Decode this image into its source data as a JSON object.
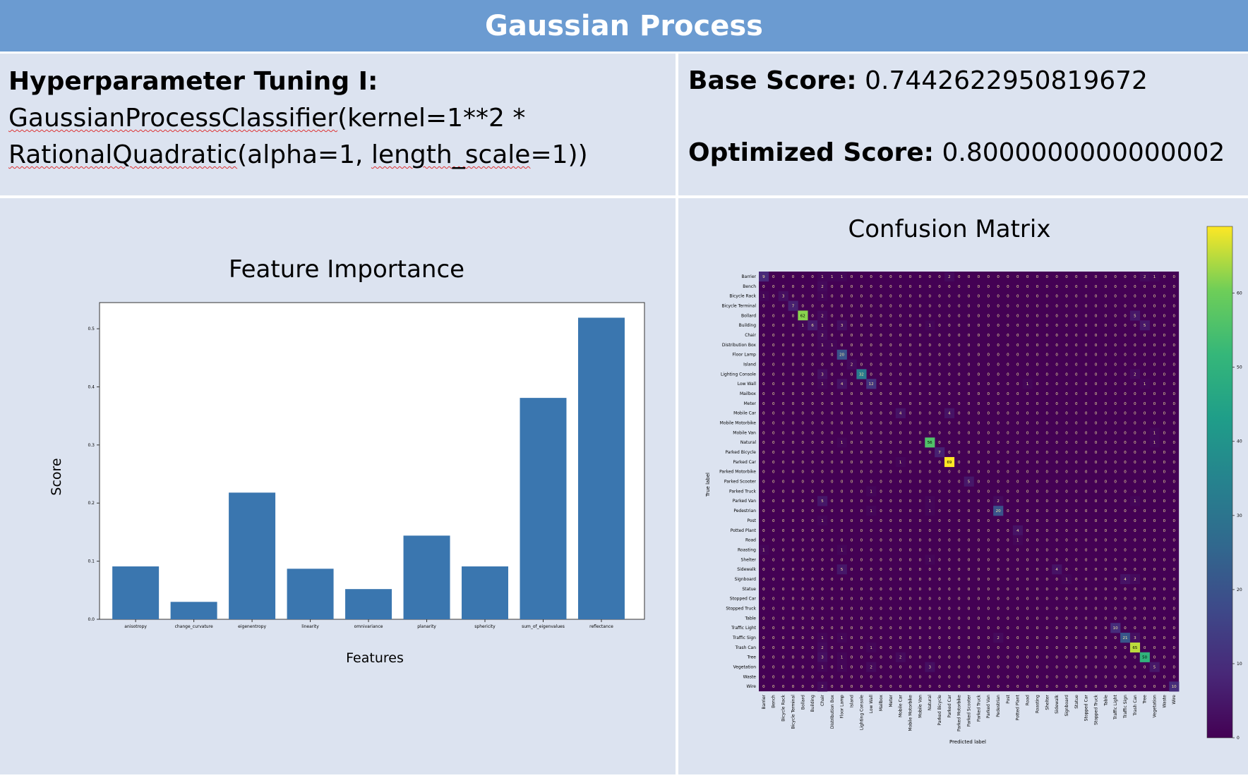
{
  "slide_title": "Gaussian Process",
  "tuning": {
    "heading": "Hyperparameter Tuning I:",
    "line1_a": "GaussianProcessClassifier",
    "line1_b": "(kernel=1**2 *",
    "line2_a": "RationalQuadratic",
    "line2_b": "(alpha=1, ",
    "line2_c": "length_scale",
    "line2_d": "=1))"
  },
  "scores": {
    "base_label": "Base Score:",
    "base_value": "0.7442622950819672",
    "optimized_label": "Optimized Score:",
    "optimized_value": "0.8000000000000002"
  },
  "chart_data": [
    {
      "type": "bar",
      "title": "Feature Importance",
      "xlabel": "Features",
      "ylabel": "Score",
      "categories": [
        "anisotropy",
        "change_curvature",
        "eigenentropy",
        "linearity",
        "omnivariance",
        "planarity",
        "sphericity",
        "sum_of_eigenvalues",
        "reflectance"
      ],
      "values": [
        0.091,
        0.03,
        0.218,
        0.087,
        0.052,
        0.144,
        0.091,
        0.381,
        0.519
      ],
      "ylim": [
        0,
        0.545
      ],
      "yticks": [
        "0.0",
        "0.1",
        "0.2",
        "0.3",
        "0.4",
        "0.5"
      ],
      "color": "#3a76af"
    },
    {
      "type": "heatmap",
      "title": "Confusion Matrix",
      "xlabel": "Predicted label",
      "ylabel": "True label",
      "labels": [
        "Barrier",
        "Bench",
        "Bicycle Rack",
        "Bicycle Terminal",
        "Bollard",
        "Building",
        "Chair",
        "Distribution Box",
        "Floor Lamp",
        "Island",
        "Lighting Console",
        "Low Wall",
        "Mailbox",
        "Meter",
        "Mobile Car",
        "Mobile Motorbike",
        "Mobile Van",
        "Natural",
        "Parked Bicycle",
        "Parked Car",
        "Parked Motorbike",
        "Parked Scooter",
        "Parked Truck",
        "Parked Van",
        "Pedestrian",
        "Post",
        "Potted Plant",
        "Road",
        "Roasting",
        "Shelter",
        "Sidewalk",
        "Signboard",
        "Statue",
        "Stopped Car",
        "Stopped Truck",
        "Table",
        "Traffic Light",
        "Traffic Sign",
        "Trash Can",
        "Tree",
        "Vegetation",
        "Waste",
        "Wire"
      ],
      "nonzero": [
        [
          0,
          0,
          9
        ],
        [
          0,
          6,
          1
        ],
        [
          0,
          7,
          1
        ],
        [
          0,
          8,
          1
        ],
        [
          0,
          19,
          2
        ],
        [
          0,
          39,
          2
        ],
        [
          0,
          40,
          1
        ],
        [
          1,
          6,
          2
        ],
        [
          2,
          0,
          1
        ],
        [
          2,
          2,
          3
        ],
        [
          2,
          6,
          1
        ],
        [
          3,
          3,
          7
        ],
        [
          4,
          4,
          62
        ],
        [
          4,
          6,
          2
        ],
        [
          4,
          38,
          5
        ],
        [
          5,
          4,
          1
        ],
        [
          5,
          5,
          6
        ],
        [
          5,
          6,
          1
        ],
        [
          5,
          8,
          3
        ],
        [
          5,
          17,
          1
        ],
        [
          5,
          39,
          5
        ],
        [
          6,
          6,
          2
        ],
        [
          7,
          6,
          1
        ],
        [
          7,
          7,
          1
        ],
        [
          8,
          8,
          20
        ],
        [
          9,
          9,
          2
        ],
        [
          10,
          6,
          3
        ],
        [
          10,
          10,
          32
        ],
        [
          10,
          38,
          2
        ],
        [
          11,
          6,
          1
        ],
        [
          11,
          8,
          4
        ],
        [
          11,
          11,
          12
        ],
        [
          11,
          27,
          1
        ],
        [
          11,
          39,
          1
        ],
        [
          14,
          14,
          4
        ],
        [
          14,
          19,
          4
        ],
        [
          16,
          40,
          1
        ],
        [
          17,
          8,
          1
        ],
        [
          17,
          17,
          56
        ],
        [
          17,
          40,
          1
        ],
        [
          18,
          18,
          7
        ],
        [
          19,
          14,
          1
        ],
        [
          19,
          19,
          69
        ],
        [
          21,
          21,
          5
        ],
        [
          22,
          11,
          1
        ],
        [
          23,
          6,
          5
        ],
        [
          23,
          17,
          1
        ],
        [
          23,
          24,
          2
        ],
        [
          23,
          38,
          1
        ],
        [
          24,
          11,
          1
        ],
        [
          24,
          17,
          1
        ],
        [
          24,
          24,
          20
        ],
        [
          25,
          6,
          1
        ],
        [
          26,
          26,
          4
        ],
        [
          27,
          26,
          1
        ],
        [
          28,
          0,
          1
        ],
        [
          28,
          8,
          1
        ],
        [
          29,
          17,
          1
        ],
        [
          30,
          8,
          5
        ],
        [
          30,
          30,
          4
        ],
        [
          31,
          31,
          1
        ],
        [
          31,
          37,
          4
        ],
        [
          31,
          38,
          2
        ],
        [
          36,
          36,
          10
        ],
        [
          37,
          6,
          1
        ],
        [
          37,
          8,
          1
        ],
        [
          37,
          24,
          2
        ],
        [
          37,
          37,
          21
        ],
        [
          37,
          38,
          3
        ],
        [
          38,
          6,
          2
        ],
        [
          38,
          11,
          1
        ],
        [
          38,
          38,
          65
        ],
        [
          39,
          6,
          3
        ],
        [
          39,
          8,
          1
        ],
        [
          39,
          14,
          2
        ],
        [
          39,
          39,
          50
        ],
        [
          40,
          6,
          1
        ],
        [
          40,
          8,
          1
        ],
        [
          40,
          11,
          2
        ],
        [
          40,
          17,
          3
        ],
        [
          40,
          40,
          5
        ],
        [
          42,
          6,
          2
        ],
        [
          42,
          42,
          10
        ]
      ],
      "zmax": 69,
      "colorbar_ticks": [
        "0",
        "10",
        "20",
        "30",
        "40",
        "50",
        "60"
      ]
    }
  ]
}
